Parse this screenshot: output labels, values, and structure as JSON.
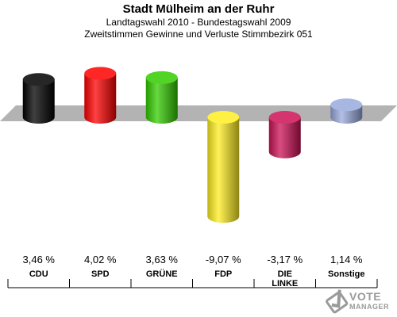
{
  "header": {
    "title": "Stadt Mülheim an der Ruhr",
    "line1": "Landtagswahl 2010 - Bundestagswahl 2009",
    "line2": "Zweitstimmen Gewinne und Verluste Stimmbezirk 051"
  },
  "logo": {
    "line1": "VOTE",
    "line2": "MANAGER"
  },
  "chart_data": {
    "type": "bar",
    "title": "Stadt Mülheim an der Ruhr",
    "subtitle": "Landtagswahl 2010 - Bundestagswahl 2009 / Zweitstimmen Gewinne und Verluste Stimmbezirk 051",
    "categories": [
      "CDU",
      "SPD",
      "GRÜNE",
      "FDP",
      "DIE LINKE",
      "Sonstige"
    ],
    "category_lines": [
      [
        "CDU"
      ],
      [
        "SPD"
      ],
      [
        "GRÜNE"
      ],
      [
        "FDP"
      ],
      [
        "DIE",
        "LINKE"
      ],
      [
        "Sonstige"
      ]
    ],
    "values": [
      3.46,
      4.02,
      3.63,
      -9.07,
      -3.17,
      1.14
    ],
    "value_labels": [
      "3,46 %",
      "4,02 %",
      "3,63 %",
      "-9,07 %",
      "-3,17 %",
      "1,14 %"
    ],
    "colors": [
      "#000000",
      "#ff0000",
      "#33cc00",
      "#ffee22",
      "#cc1155",
      "#99aadd"
    ],
    "unit": "%"
  }
}
